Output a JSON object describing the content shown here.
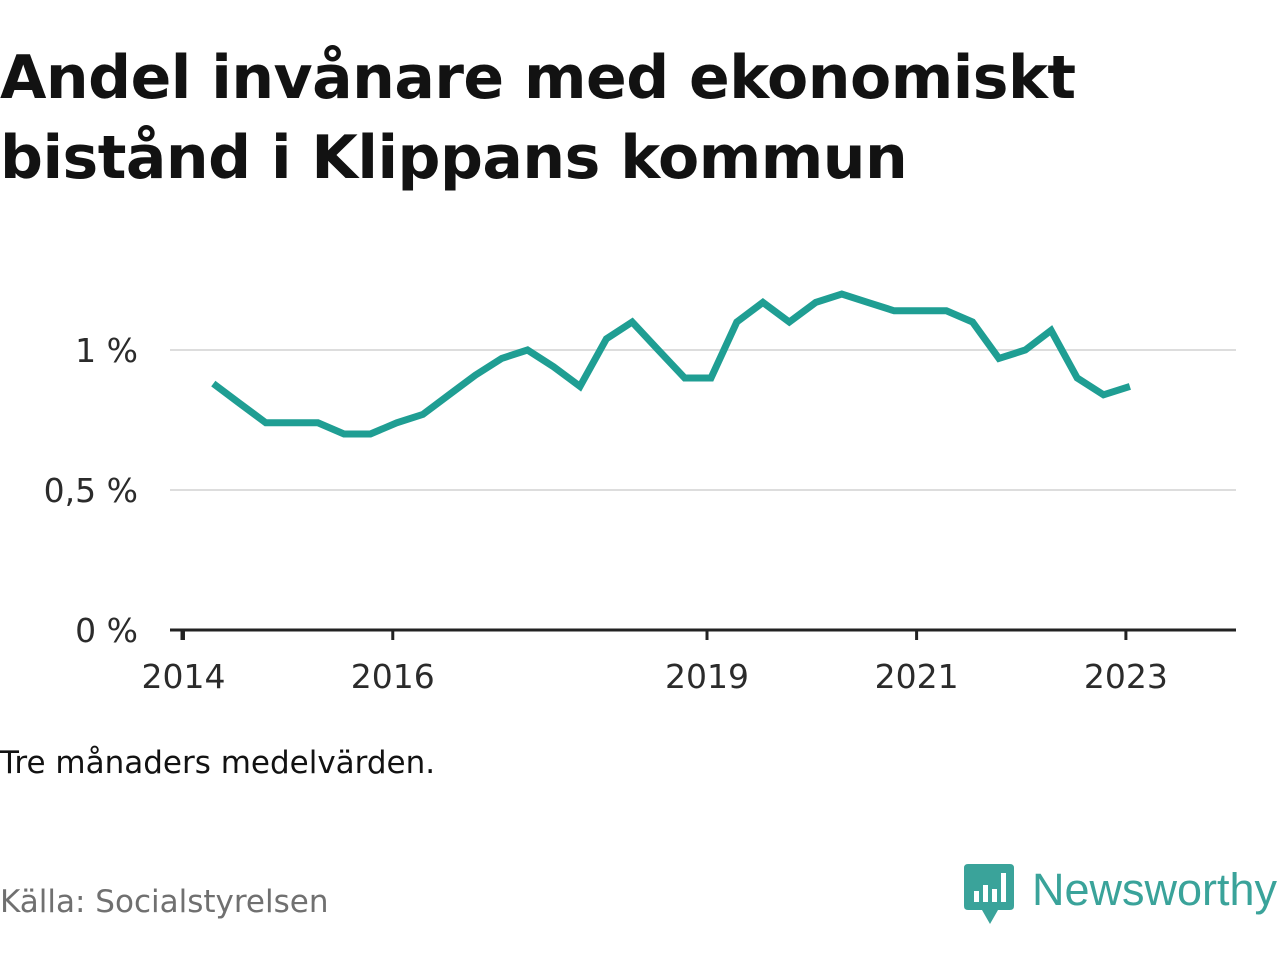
{
  "title": "Andel invånare med ekonomiskt bistånd i Klippans kommun",
  "note": "Tre månaders medelvärden.",
  "source": "Källa: Socialstyrelsen",
  "brand": {
    "name": "Newsworthy",
    "icon": "bar-chart-speech-bubble-icon"
  },
  "colors": {
    "line": "#1f9e93",
    "brand": "#3aa39a",
    "grid": "#dddddd",
    "axis": "#222222"
  },
  "chart_data": {
    "type": "line",
    "title": "Andel invånare med ekonomiskt bistånd i Klippans kommun",
    "xlabel": "",
    "ylabel": "",
    "ylim": [
      0,
      1.25
    ],
    "xlim": [
      "2013-11-15",
      "2024-01-20"
    ],
    "grid": true,
    "legend": "none",
    "y_ticks": [
      {
        "value": 0,
        "label": "0 %"
      },
      {
        "value": 0.5,
        "label": "0,5 %"
      },
      {
        "value": 1,
        "label": "1 %"
      }
    ],
    "x_ticks": [
      {
        "date": "2014-01-01",
        "label": "2014"
      },
      {
        "date": "2016-01-01",
        "label": "2016"
      },
      {
        "date": "2019-01-01",
        "label": "2019"
      },
      {
        "date": "2021-01-01",
        "label": "2021"
      },
      {
        "date": "2023-01-01",
        "label": "2023"
      }
    ],
    "series": [
      {
        "points": [
          {
            "x": "2014-04-15",
            "y": 0.88
          },
          {
            "x": "2014-07-15",
            "y": 0.81
          },
          {
            "x": "2014-10-15",
            "y": 0.74
          },
          {
            "x": "2015-01-15",
            "y": 0.74
          },
          {
            "x": "2015-04-15",
            "y": 0.74
          },
          {
            "x": "2015-07-15",
            "y": 0.7
          },
          {
            "x": "2015-10-15",
            "y": 0.7
          },
          {
            "x": "2016-01-15",
            "y": 0.74
          },
          {
            "x": "2016-04-15",
            "y": 0.77
          },
          {
            "x": "2016-07-15",
            "y": 0.84
          },
          {
            "x": "2016-10-15",
            "y": 0.91
          },
          {
            "x": "2017-01-15",
            "y": 0.97
          },
          {
            "x": "2017-04-15",
            "y": 1.0
          },
          {
            "x": "2017-07-15",
            "y": 0.94
          },
          {
            "x": "2017-10-15",
            "y": 0.87
          },
          {
            "x": "2018-01-15",
            "y": 1.04
          },
          {
            "x": "2018-04-15",
            "y": 1.1
          },
          {
            "x": "2018-07-15",
            "y": 1.0
          },
          {
            "x": "2018-10-15",
            "y": 0.9
          },
          {
            "x": "2019-01-15",
            "y": 0.9
          },
          {
            "x": "2019-04-15",
            "y": 1.1
          },
          {
            "x": "2019-07-15",
            "y": 1.17
          },
          {
            "x": "2019-10-15",
            "y": 1.1
          },
          {
            "x": "2020-01-15",
            "y": 1.17
          },
          {
            "x": "2020-04-15",
            "y": 1.2
          },
          {
            "x": "2020-07-15",
            "y": 1.17
          },
          {
            "x": "2020-10-15",
            "y": 1.14
          },
          {
            "x": "2021-01-15",
            "y": 1.14
          },
          {
            "x": "2021-04-15",
            "y": 1.14
          },
          {
            "x": "2021-07-15",
            "y": 1.1
          },
          {
            "x": "2021-10-15",
            "y": 0.97
          },
          {
            "x": "2022-01-15",
            "y": 1.0
          },
          {
            "x": "2022-04-15",
            "y": 1.07
          },
          {
            "x": "2022-07-15",
            "y": 0.9
          },
          {
            "x": "2022-10-15",
            "y": 0.84
          },
          {
            "x": "2023-01-15",
            "y": 0.87
          }
        ]
      }
    ]
  }
}
